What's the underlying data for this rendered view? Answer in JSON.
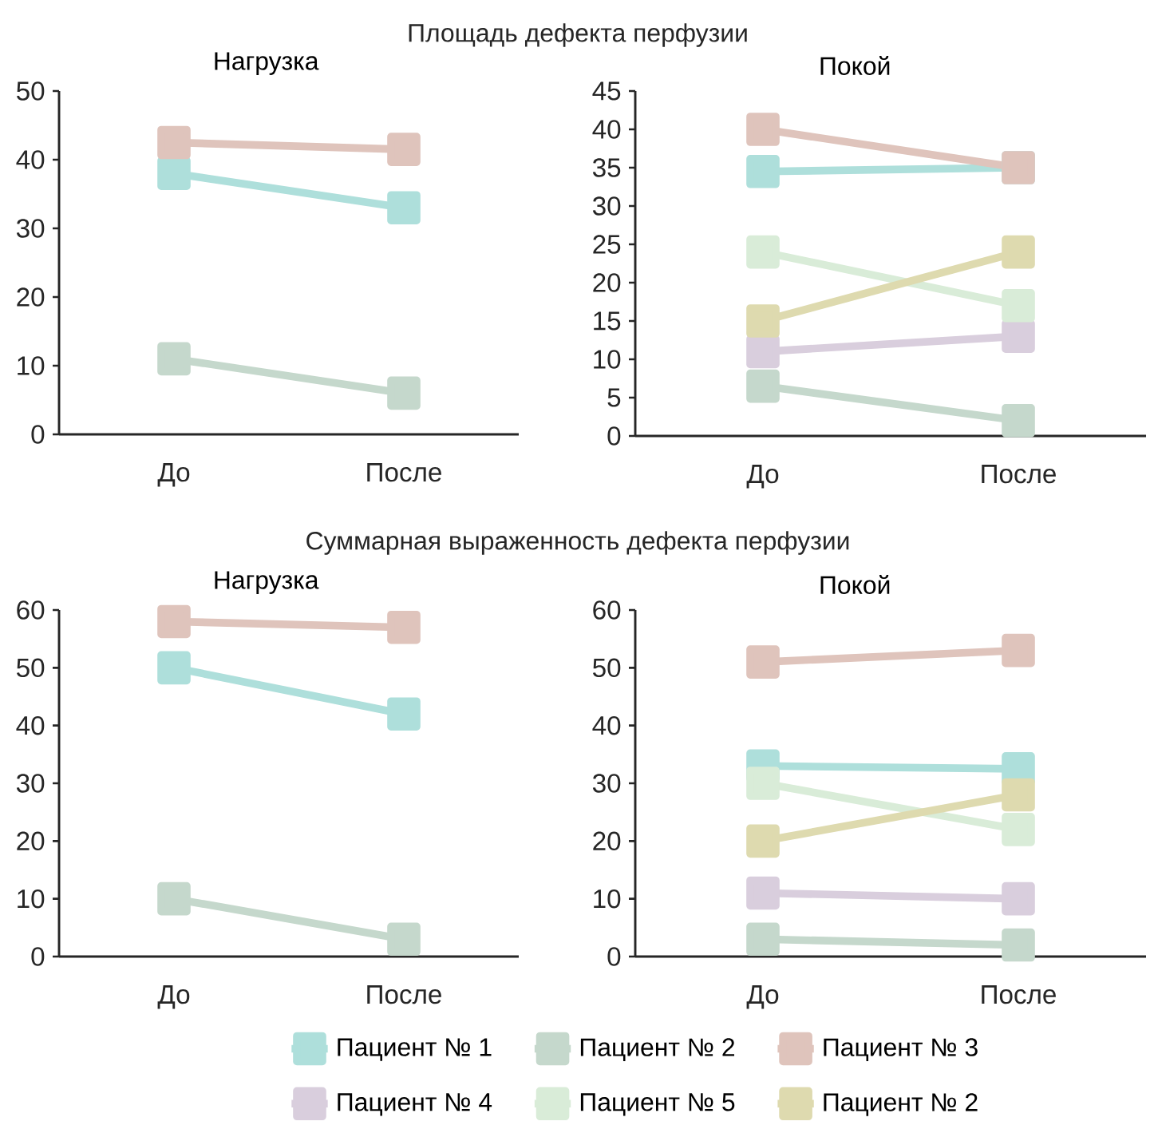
{
  "chart_data": [
    {
      "type": "line",
      "title": "Нагрузка",
      "annotations": [
        "Площадь дефекта перфузии"
      ],
      "categories": [
        "До",
        "После"
      ],
      "ylim": [
        0,
        50
      ],
      "yticks": [
        0,
        10,
        20,
        30,
        40,
        50
      ],
      "marker": "square",
      "legend": false,
      "series": [
        {
          "color": "#aedfdb",
          "values": [
            38,
            33
          ]
        },
        {
          "color": "#c5d8cc",
          "values": [
            11,
            6
          ]
        },
        {
          "color": "#dfc4bc",
          "values": [
            42.5,
            41.5
          ]
        }
      ]
    },
    {
      "type": "line",
      "title": "Покой",
      "categories": [
        "До",
        "После"
      ],
      "ylim": [
        0,
        45
      ],
      "yticks": [
        0,
        5,
        10,
        15,
        20,
        25,
        30,
        35,
        40,
        45
      ],
      "marker": "square",
      "legend": false,
      "series": [
        {
          "color": "#aedfdb",
          "values": [
            34.5,
            35
          ]
        },
        {
          "color": "#c5d8cc",
          "values": [
            6.5,
            2
          ]
        },
        {
          "color": "#dfc4bc",
          "values": [
            40,
            35
          ]
        },
        {
          "color": "#d9cedd",
          "values": [
            11,
            13
          ]
        },
        {
          "color": "#d9ecd8",
          "values": [
            24,
            17
          ]
        },
        {
          "color": "#dedaaf",
          "values": [
            15,
            24
          ]
        }
      ]
    },
    {
      "type": "line",
      "title": "Нагрузка",
      "annotations": [
        "Суммарная выраженность дефекта перфузии"
      ],
      "categories": [
        "До",
        "После"
      ],
      "ylim": [
        0,
        60
      ],
      "yticks": [
        0,
        10,
        20,
        30,
        40,
        50,
        60
      ],
      "marker": "square",
      "legend": false,
      "series": [
        {
          "color": "#aedfdb",
          "values": [
            50,
            42
          ]
        },
        {
          "color": "#c5d8cc",
          "values": [
            10,
            3
          ]
        },
        {
          "color": "#dfc4bc",
          "values": [
            58,
            57
          ]
        }
      ]
    },
    {
      "type": "line",
      "title": "Покой",
      "categories": [
        "До",
        "После"
      ],
      "ylim": [
        0,
        60
      ],
      "yticks": [
        0,
        10,
        20,
        30,
        40,
        50,
        60
      ],
      "marker": "square",
      "legend": "bottom",
      "series": [
        {
          "name": "Пациент № 1",
          "color": "#aedfdb",
          "values": [
            33,
            32.5
          ]
        },
        {
          "name": "Пациент № 2",
          "color": "#c5d8cc",
          "values": [
            3,
            2
          ]
        },
        {
          "name": "Пациент № 3",
          "color": "#dfc4bc",
          "values": [
            51,
            53
          ]
        },
        {
          "name": "Пациент № 4",
          "color": "#d9cedd",
          "values": [
            11,
            10
          ]
        },
        {
          "name": "Пациент № 5",
          "color": "#d9ecd8",
          "values": [
            30,
            22
          ]
        },
        {
          "name": "Пациент № 2",
          "color": "#dedaaf",
          "values": [
            20,
            28
          ]
        }
      ]
    }
  ]
}
